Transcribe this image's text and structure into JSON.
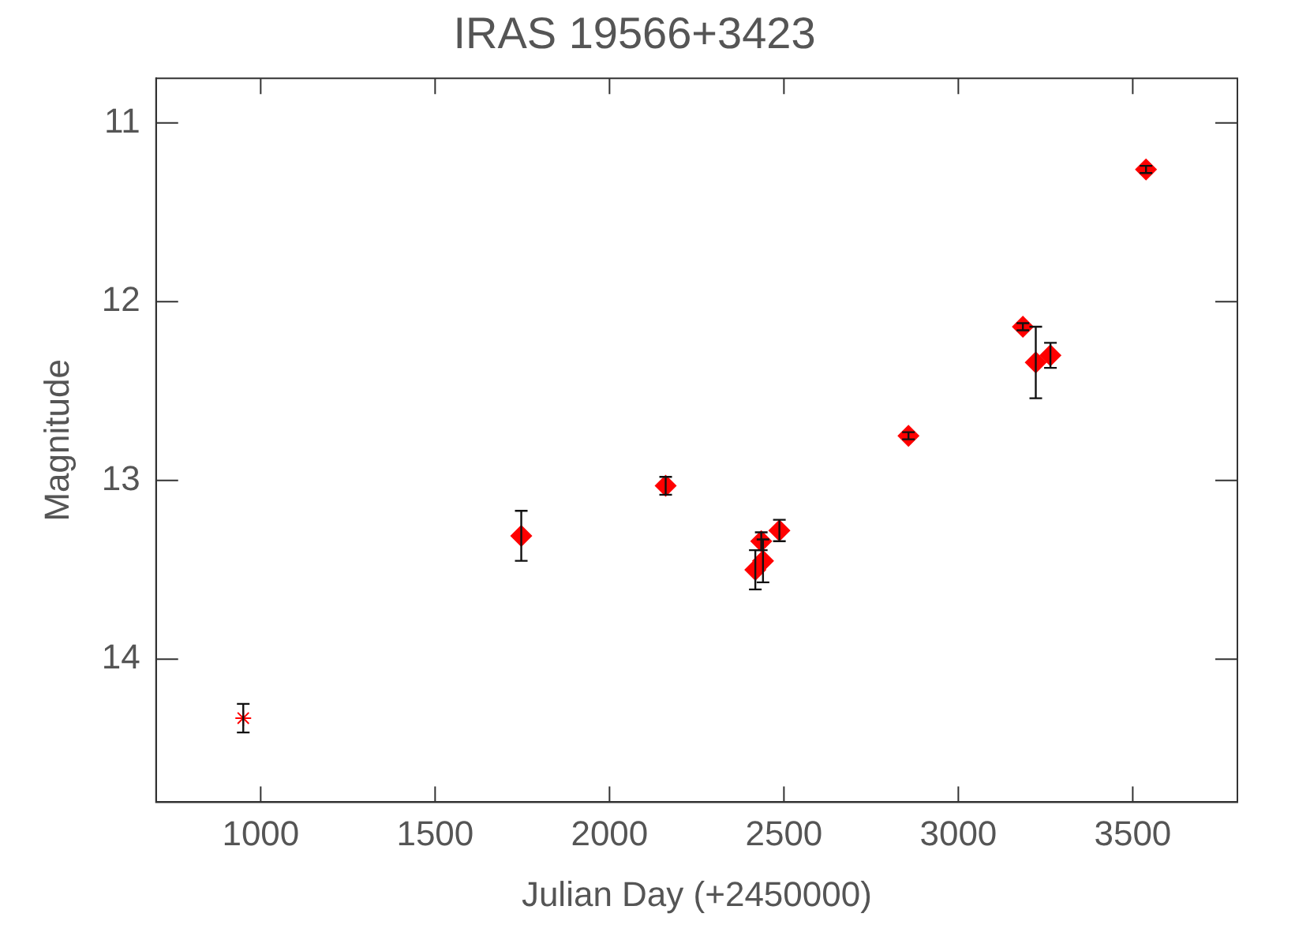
{
  "chart_data": {
    "type": "scatter",
    "title": "IRAS 19566+3423",
    "xlabel": "Julian Day (+2450000)",
    "ylabel": "Magnitude",
    "xlim": [
      700,
      3800
    ],
    "xticks": [
      1000,
      1500,
      2000,
      2500,
      3000,
      3500
    ],
    "ylim": [
      14.8,
      10.75
    ],
    "yticks": [
      11,
      12,
      13,
      14
    ],
    "grid": false,
    "legend": false,
    "series": [
      {
        "color": "#ff0000",
        "marker": "cross",
        "x": [
          950
        ],
        "values": [
          14.33
        ],
        "errors": [
          0.08
        ]
      },
      {
        "color": "#ff0000",
        "marker": "diamond",
        "x": [
          1747,
          2161,
          2418,
          2440,
          2435,
          2487,
          2857,
          3185,
          3222,
          3264,
          3538
        ],
        "values": [
          13.31,
          13.03,
          13.5,
          13.45,
          13.34,
          13.28,
          12.75,
          12.14,
          12.34,
          12.3,
          11.26
        ],
        "errors": [
          0.14,
          0.05,
          0.11,
          0.12,
          0.05,
          0.06,
          0.02,
          0.02,
          0.2,
          0.07,
          0.02
        ]
      }
    ]
  }
}
